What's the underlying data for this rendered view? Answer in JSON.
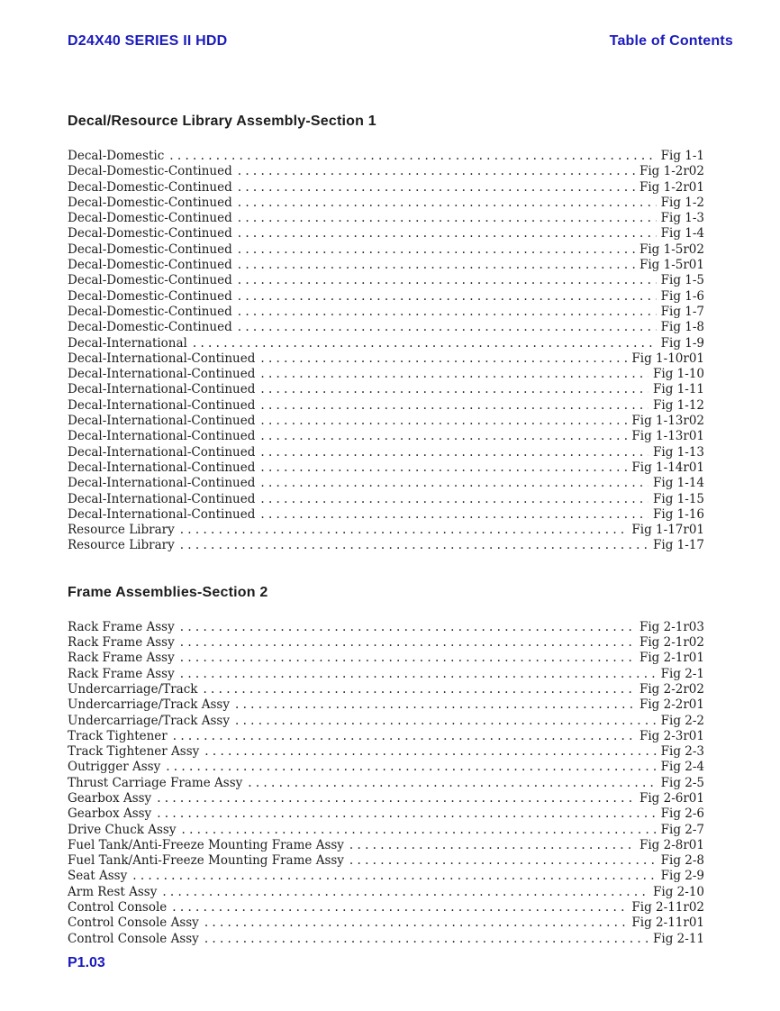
{
  "colors": {
    "accent": "#1a1abe",
    "text": "#1c1c1c"
  },
  "header": {
    "left": "D24X40 SERIES II HDD",
    "right": "Table of Contents"
  },
  "footer": {
    "page_label": "P1.03"
  },
  "sections": [
    {
      "title": "Decal/Resource Library Assembly-Section 1",
      "entries": [
        {
          "title": "Decal-Domestic",
          "fig": "Fig 1-1"
        },
        {
          "title": "Decal-Domestic-Continued",
          "fig": "Fig 1-2r02"
        },
        {
          "title": "Decal-Domestic-Continued",
          "fig": "Fig 1-2r01"
        },
        {
          "title": "Decal-Domestic-Continued",
          "fig": "Fig 1-2"
        },
        {
          "title": "Decal-Domestic-Continued",
          "fig": "Fig 1-3"
        },
        {
          "title": "Decal-Domestic-Continued",
          "fig": "Fig 1-4"
        },
        {
          "title": "Decal-Domestic-Continued",
          "fig": "Fig 1-5r02"
        },
        {
          "title": "Decal-Domestic-Continued",
          "fig": "Fig 1-5r01"
        },
        {
          "title": "Decal-Domestic-Continued",
          "fig": "Fig 1-5"
        },
        {
          "title": "Decal-Domestic-Continued",
          "fig": "Fig 1-6"
        },
        {
          "title": "Decal-Domestic-Continued",
          "fig": "Fig 1-7"
        },
        {
          "title": "Decal-Domestic-Continued",
          "fig": "Fig 1-8"
        },
        {
          "title": "Decal-International",
          "fig": "Fig 1-9"
        },
        {
          "title": "Decal-International-Continued",
          "fig": "Fig 1-10r01"
        },
        {
          "title": "Decal-International-Continued",
          "fig": "Fig 1-10"
        },
        {
          "title": "Decal-International-Continued",
          "fig": "Fig 1-11"
        },
        {
          "title": "Decal-International-Continued",
          "fig": "Fig 1-12"
        },
        {
          "title": "Decal-International-Continued",
          "fig": "Fig 1-13r02"
        },
        {
          "title": "Decal-International-Continued",
          "fig": "Fig 1-13r01"
        },
        {
          "title": "Decal-International-Continued",
          "fig": "Fig 1-13"
        },
        {
          "title": "Decal-International-Continued",
          "fig": "Fig 1-14r01"
        },
        {
          "title": "Decal-International-Continued",
          "fig": "Fig 1-14"
        },
        {
          "title": "Decal-International-Continued",
          "fig": "Fig 1-15"
        },
        {
          "title": "Decal-International-Continued",
          "fig": "Fig 1-16"
        },
        {
          "title": "Resource Library",
          "fig": "Fig 1-17r01"
        },
        {
          "title": "Resource Library",
          "fig": "Fig 1-17"
        }
      ]
    },
    {
      "title": "Frame Assemblies-Section 2",
      "entries": [
        {
          "title": "Rack Frame Assy",
          "fig": "Fig 2-1r03"
        },
        {
          "title": "Rack Frame Assy",
          "fig": "Fig 2-1r02"
        },
        {
          "title": "Rack Frame Assy",
          "fig": "Fig 2-1r01"
        },
        {
          "title": "Rack Frame Assy",
          "fig": "Fig 2-1"
        },
        {
          "title": "Undercarriage/Track",
          "fig": "Fig 2-2r02"
        },
        {
          "title": "Undercarriage/Track Assy",
          "fig": "Fig 2-2r01"
        },
        {
          "title": "Undercarriage/Track Assy",
          "fig": "Fig 2-2"
        },
        {
          "title": "Track Tightener",
          "fig": "Fig 2-3r01"
        },
        {
          "title": "Track Tightener Assy",
          "fig": "Fig 2-3"
        },
        {
          "title": "Outrigger Assy",
          "fig": "Fig 2-4"
        },
        {
          "title": "Thrust Carriage Frame Assy",
          "fig": "Fig 2-5"
        },
        {
          "title": "Gearbox Assy",
          "fig": "Fig 2-6r01"
        },
        {
          "title": "Gearbox Assy",
          "fig": "Fig 2-6"
        },
        {
          "title": "Drive Chuck Assy",
          "fig": "Fig 2-7"
        },
        {
          "title": "Fuel Tank/Anti-Freeze Mounting Frame Assy",
          "fig": "Fig 2-8r01"
        },
        {
          "title": "Fuel Tank/Anti-Freeze Mounting Frame Assy",
          "fig": "Fig 2-8"
        },
        {
          "title": "Seat Assy",
          "fig": "Fig 2-9"
        },
        {
          "title": "Arm Rest Assy",
          "fig": "Fig 2-10"
        },
        {
          "title": "Control Console",
          "fig": "Fig 2-11r02"
        },
        {
          "title": "Control Console Assy",
          "fig": "Fig 2-11r01"
        },
        {
          "title": "Control Console Assy",
          "fig": "Fig 2-11"
        }
      ]
    }
  ]
}
